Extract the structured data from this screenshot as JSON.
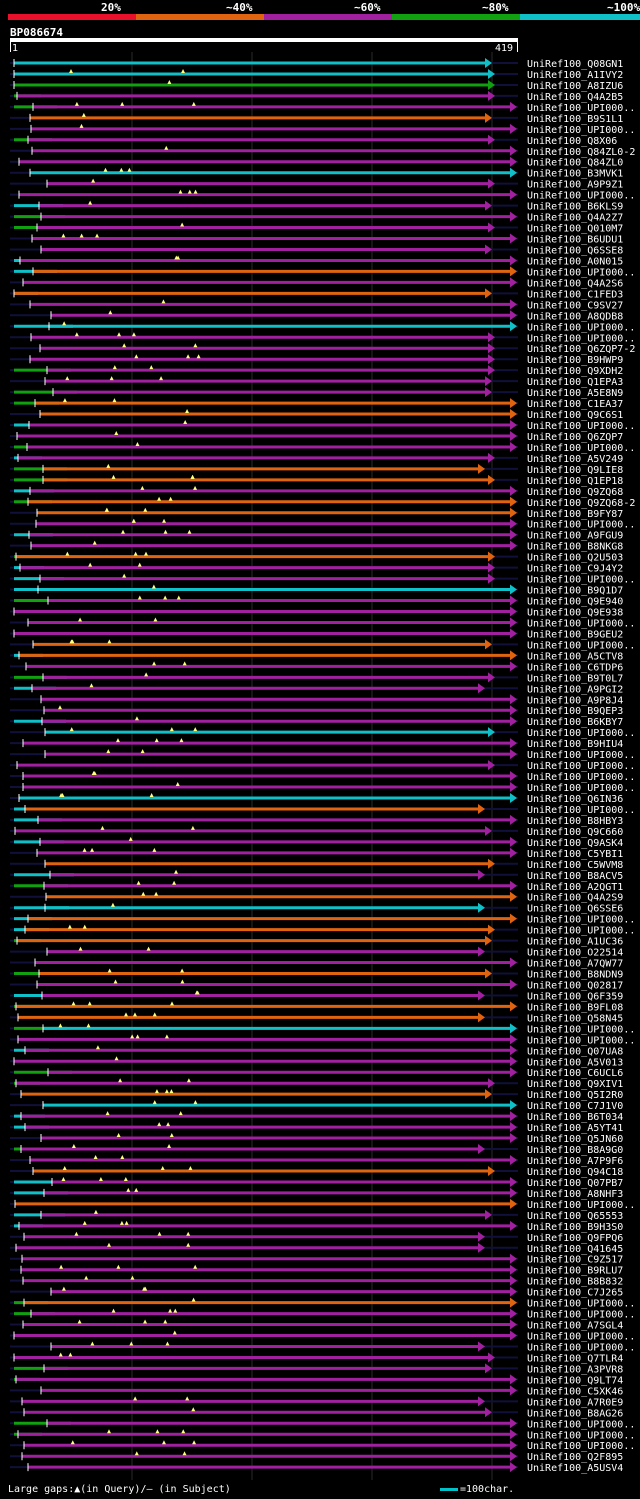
{
  "header": {
    "legend": [
      {
        "label": "20%",
        "color": "#e8102a"
      },
      {
        "label": "~40%",
        "color": "#e06410"
      },
      {
        "label": "~60%",
        "color": "#a020a0"
      },
      {
        "label": "~80%",
        "color": "#10a010"
      },
      {
        "label": "~100%",
        "color": "#10c0c8"
      }
    ],
    "query_id": "BP086674",
    "ruler_start": "1",
    "ruler_end": "419"
  },
  "colors": {
    "line": "#10103a",
    "gap_marker": "#ffff80",
    "tick": "#ffffff"
  },
  "icons": {
    "row_end": "triangle-arrow-icon",
    "gap": "triangle-icon"
  },
  "rows": [
    "UniRef100_Q08GN1",
    "UniRef100_A1IVY2",
    "UniRef100_A8IZU6",
    "UniRef100_Q4A2B5",
    "UniRef100_UPI000..",
    "UniRef100_B9S1L1",
    "UniRef100_UPI000..",
    "UniRef100_Q8X06",
    "UniRef100_Q84ZL0-2",
    "UniRef100_Q84ZL0",
    "UniRef100_B3MVK1",
    "UniRef100_A9P9Z1",
    "UniRef100_UPI000..",
    "UniRef100_B6KLS9",
    "UniRef100_Q4A2Z7",
    "UniRef100_Q010M7",
    "UniRef100_B6UDU1",
    "UniRef100_Q6SSE8",
    "UniRef100_A0N015",
    "UniRef100_UPI000..",
    "UniRef100_Q4A2S6",
    "UniRef100_C1FED3",
    "UniRef100_C9SV27",
    "UniRef100_A8QDB8",
    "UniRef100_UPI000..",
    "UniRef100_UPI000..",
    "UniRef100_Q6ZQP7-2",
    "UniRef100_B9HWP9",
    "UniRef100_Q9XDH2",
    "UniRef100_Q1EPA3",
    "UniRef100_A5E8N9",
    "UniRef100_C1EA37",
    "UniRef100_Q9C6S1",
    "UniRef100_UPI000..",
    "UniRef100_Q6ZQP7",
    "UniRef100_UPI000..",
    "UniRef100_A5V249",
    "UniRef100_Q9LIE8",
    "UniRef100_Q1EP18",
    "UniRef100_Q9ZQ68",
    "UniRef100_Q9ZQ68-2",
    "UniRef100_B9FY87",
    "UniRef100_UPI000..",
    "UniRef100_A9FGU9",
    "UniRef100_B8NKG8",
    "UniRef100_Q2U503",
    "UniRef100_C9J4Y2",
    "UniRef100_UPI000..",
    "UniRef100_B9Q1D7",
    "UniRef100_Q9E940",
    "UniRef100_Q9E938",
    "UniRef100_UPI000..",
    "UniRef100_B9GEU2",
    "UniRef100_UPI000..",
    "UniRef100_A5CTV8",
    "UniRef100_C6TDP6",
    "UniRef100_B9T0L7",
    "UniRef100_A9PGI2",
    "UniRef100_A9P8J4",
    "UniRef100_B9QEP3",
    "UniRef100_B6KBY7",
    "UniRef100_UPI000..",
    "UniRef100_B9HIU4",
    "UniRef100_UPI000..",
    "UniRef100_UPI000..",
    "UniRef100_UPI000..",
    "UniRef100_UPI000..",
    "UniRef100_Q6IN36",
    "UniRef100_UPI000..",
    "UniRef100_B8HBY3",
    "UniRef100_Q9C660",
    "UniRef100_Q9ASK4",
    "UniRef100_C5YBI1",
    "UniRef100_C5WVM8",
    "UniRef100_B8ACV5",
    "UniRef100_A2QGT1",
    "UniRef100_Q4A2S9",
    "UniRef100_Q6SSE6",
    "UniRef100_UPI000..",
    "UniRef100_UPI000..",
    "UniRef100_A1UC36",
    "UniRef100_O22514",
    "UniRef100_A7QW77",
    "UniRef100_B8NDN9",
    "UniRef100_Q02817",
    "UniRef100_Q6F359",
    "UniRef100_B9FL08",
    "UniRef100_Q58N45",
    "UniRef100_UPI000..",
    "UniRef100_UPI000..",
    "UniRef100_Q07UA8",
    "UniRef100_A5V013",
    "UniRef100_C6UCL6",
    "UniRef100_Q9XIV1",
    "UniRef100_Q5I2R0",
    "UniRef100_C7J1V0",
    "UniRef100_B6T034",
    "UniRef100_A5YT41",
    "UniRef100_Q5JN60",
    "UniRef100_B8A9G0",
    "UniRef100_A7P9F6",
    "UniRef100_Q94C18",
    "UniRef100_Q07PB7",
    "UniRef100_A8NHF3",
    "UniRef100_UPI000..",
    "UniRef100_Q65553",
    "UniRef100_B9H3S0",
    "UniRef100_Q9FPQ6",
    "UniRef100_Q41645",
    "UniRef100_C9Z517",
    "UniRef100_B9RLU7",
    "UniRef100_B8B832",
    "UniRef100_C7J265",
    "UniRef100_UPI000..",
    "UniRef100_UPI000..",
    "UniRef100_A7SGL4",
    "UniRef100_UPI000..",
    "UniRef100_UPI000..",
    "UniRef100_Q7TLR4",
    "UniRef100_A3PVR8",
    "UniRef100_Q9LT74",
    "UniRef100_C5XK46",
    "UniRef100_A7R0E9",
    "UniRef100_B8AG26",
    "UniRef100_UPI000..",
    "UniRef100_UPI000..",
    "UniRef100_UPI000..",
    "UniRef100_Q2F895",
    "UniRef100_A5USV4"
  ],
  "footer": {
    "large_gaps_text": "Large gaps:▲(in Query)/– (in Subject)",
    "scale_text": "=100char."
  }
}
